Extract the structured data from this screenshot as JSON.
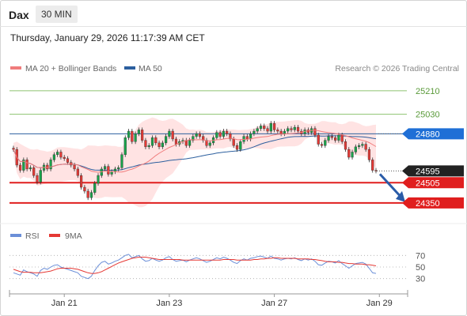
{
  "header": {
    "instrument": "Dax",
    "timeframe": "30 MIN",
    "timestamp": "Thursday, January 29, 2026 11:17:39 AM CET",
    "copyright": "Research © 2026 Trading Central"
  },
  "colors": {
    "up": "#18a34a",
    "down": "#e53935",
    "wick": "#333333",
    "ma20": "#f07c7c",
    "bollinger": "#ffdede",
    "ma50": "#2c5f9e",
    "resistance": "#8dc26f",
    "support": "#e01e1e",
    "pivot": "#1f6fd6",
    "current": "#222222",
    "rsi": "#6b8fd8",
    "rsi_ma": "#e53935",
    "arrow": "#2b5ca8"
  },
  "chart_data": [
    {
      "type": "candlestick",
      "legend": [
        "MA 20 + Bollinger Bands",
        "MA 50"
      ],
      "ylim": [
        24240,
        25300
      ],
      "levels": [
        {
          "value": 25210,
          "label": "25210",
          "kind": "resistance"
        },
        {
          "value": 25030,
          "label": "25030",
          "kind": "resistance"
        },
        {
          "value": 24880,
          "label": "24880",
          "kind": "pivot"
        },
        {
          "value": 24595,
          "label": "24595",
          "kind": "current"
        },
        {
          "value": 24505,
          "label": "24505",
          "kind": "support"
        },
        {
          "value": 24350,
          "label": "24350",
          "kind": "support"
        }
      ],
      "x_labels": [
        {
          "label": "Jan 21",
          "index": 15
        },
        {
          "label": "Jan 23",
          "index": 46
        },
        {
          "label": "Jan 27",
          "index": 77
        },
        {
          "label": "Jan 29",
          "index": 108
        }
      ],
      "close": [
        24760,
        24640,
        24600,
        24680,
        24610,
        24620,
        24560,
        24510,
        24600,
        24640,
        24610,
        24680,
        24720,
        24740,
        24700,
        24690,
        24660,
        24640,
        24610,
        24560,
        24470,
        24440,
        24390,
        24430,
        24500,
        24560,
        24610,
        24630,
        24570,
        24590,
        24610,
        24620,
        24720,
        24850,
        24900,
        24820,
        24880,
        24910,
        24830,
        24780,
        24790,
        24850,
        24810,
        24780,
        24810,
        24860,
        24900,
        24840,
        24800,
        24820,
        24830,
        24790,
        24830,
        24860,
        24880,
        24860,
        24830,
        24790,
        24810,
        24850,
        24890,
        24860,
        24900,
        24880,
        24840,
        24790,
        24760,
        24820,
        24860,
        24840,
        24880,
        24900,
        24920,
        24940,
        24920,
        24900,
        24960,
        24910,
        24900,
        24880,
        24900,
        24920,
        24910,
        24930,
        24900,
        24880,
        24910,
        24890,
        24920,
        24870,
        24800,
        24790,
        24830,
        24860,
        24850,
        24830,
        24870,
        24820,
        24760,
        24700,
        24740,
        24780,
        24790,
        24800,
        24760,
        24680,
        24600,
        24595
      ]
    },
    {
      "type": "line",
      "legend": [
        "RSI",
        "9MA"
      ],
      "ylim": [
        20,
        80
      ],
      "ticks": [
        70,
        50,
        30
      ],
      "rsi": [
        40,
        38,
        36,
        45,
        42,
        40,
        38,
        34,
        44,
        48,
        46,
        50,
        53,
        54,
        50,
        48,
        46,
        44,
        42,
        40,
        34,
        32,
        30,
        34,
        44,
        52,
        58,
        60,
        55,
        57,
        60,
        62,
        66,
        70,
        72,
        66,
        68,
        70,
        64,
        60,
        61,
        65,
        62,
        60,
        62,
        66,
        68,
        63,
        60,
        61,
        62,
        59,
        62,
        64,
        66,
        64,
        61,
        58,
        60,
        63,
        66,
        64,
        67,
        65,
        62,
        58,
        56,
        61,
        64,
        62,
        65,
        66,
        68,
        69,
        67,
        65,
        69,
        65,
        64,
        62,
        64,
        65,
        64,
        66,
        63,
        61,
        64,
        62,
        64,
        60,
        54,
        53,
        57,
        60,
        59,
        57,
        61,
        56,
        52,
        48,
        52,
        56,
        57,
        58,
        55,
        48,
        40,
        39
      ],
      "rsi_ma": [
        46,
        44,
        42,
        41,
        41,
        41,
        40,
        40,
        40,
        41,
        42,
        43,
        45,
        47,
        48,
        48,
        48,
        48,
        47,
        46,
        44,
        42,
        40,
        39,
        39,
        40,
        42,
        45,
        48,
        51,
        54,
        57,
        59,
        61,
        63,
        65,
        66,
        67,
        67,
        67,
        66,
        65,
        64,
        63,
        63,
        63,
        63,
        63,
        63,
        63,
        62,
        62,
        62,
        62,
        62,
        62,
        62,
        62,
        62,
        62,
        62,
        62,
        63,
        63,
        63,
        63,
        62,
        62,
        62,
        62,
        62,
        63,
        63,
        64,
        64,
        65,
        65,
        66,
        66,
        65,
        65,
        65,
        65,
        65,
        64,
        64,
        64,
        64,
        63,
        63,
        62,
        61,
        60,
        59,
        59,
        59,
        58,
        58,
        57,
        56,
        56,
        55,
        55,
        55,
        54,
        54,
        53,
        52
      ]
    }
  ]
}
